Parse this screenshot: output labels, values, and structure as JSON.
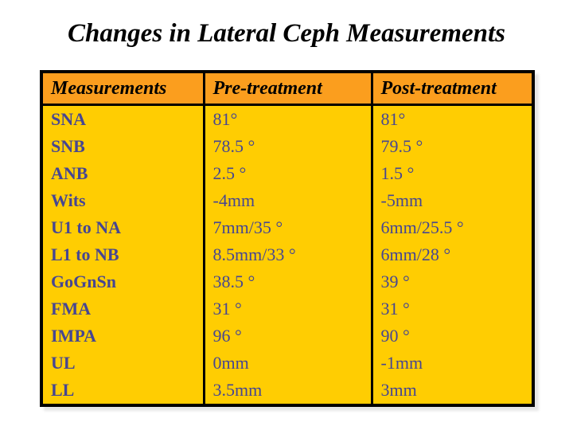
{
  "title": "Changes in Lateral Ceph Measurements",
  "table": {
    "columns": [
      "Measurements",
      "Pre-treatment",
      "Post-treatment"
    ],
    "rows": [
      {
        "label": "SNA",
        "pre": "81°",
        "post": "81°"
      },
      {
        "label": "SNB",
        "pre": "78.5 °",
        "post": "79.5 °"
      },
      {
        "label": "ANB",
        "pre": "2.5 °",
        "post": "1.5 °"
      },
      {
        "label": "Wits",
        "pre": "-4mm",
        "post": "-5mm"
      },
      {
        "label": "U1 to NA",
        "pre": "7mm/35 °",
        "post": "6mm/25.5 °"
      },
      {
        "label": "L1 to NB",
        "pre": "8.5mm/33 °",
        "post": "6mm/28 °"
      },
      {
        "label": "GoGnSn",
        "pre": "38.5 °",
        "post": "39 °"
      },
      {
        "label": "FMA",
        "pre": "31 °",
        "post": "31 °"
      },
      {
        "label": "IMPA",
        "pre": "96 °",
        "post": "90 °"
      },
      {
        "label": "UL",
        "pre": "0mm",
        "post": "-1mm"
      },
      {
        "label": "LL",
        "pre": "3.5mm",
        "post": "3mm"
      }
    ],
    "colors": {
      "header_bg": "#FB9E1E",
      "body_bg": "#FFCD02",
      "body_text": "#464692",
      "header_text": "#000000",
      "border": "#000000"
    }
  }
}
